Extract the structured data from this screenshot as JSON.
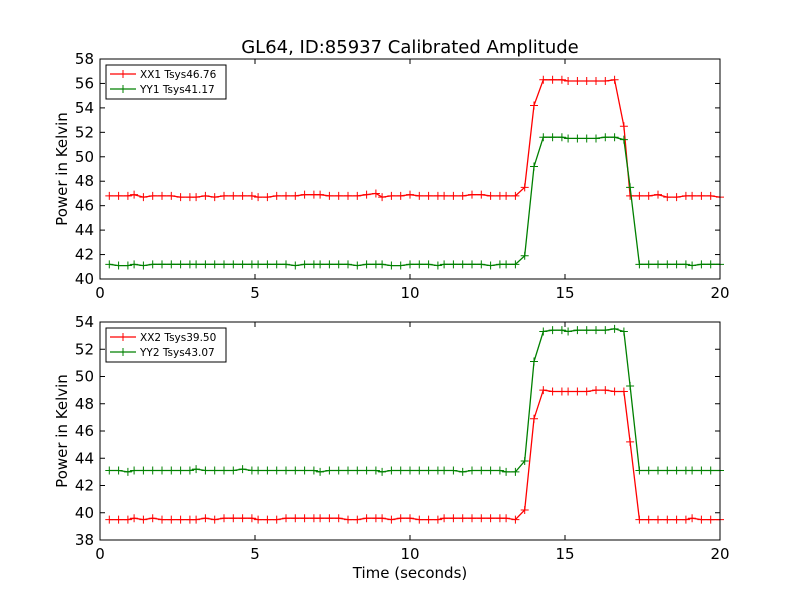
{
  "chart_data": [
    {
      "type": "line",
      "title": "GL64, ID:85937 Calibrated Amplitude",
      "xlabel": "",
      "ylabel": "Power in Kelvin",
      "xlim": [
        0,
        20
      ],
      "ylim": [
        40,
        58
      ],
      "xticks": [
        "0",
        "5",
        "10",
        "15",
        "20"
      ],
      "yticks": [
        "40",
        "42",
        "44",
        "46",
        "48",
        "50",
        "52",
        "54",
        "56",
        "58"
      ],
      "legend": "top-left",
      "grid": false,
      "series": [
        {
          "name": "XX1 Tsys46.76",
          "color": "#ff0000",
          "x": [
            0.3,
            0.6,
            0.9,
            1.1,
            1.4,
            1.7,
            2.0,
            2.3,
            2.6,
            2.9,
            3.1,
            3.4,
            3.7,
            4.0,
            4.3,
            4.6,
            4.9,
            5.1,
            5.4,
            5.7,
            6.0,
            6.3,
            6.6,
            6.9,
            7.1,
            7.4,
            7.7,
            8.0,
            8.3,
            8.6,
            8.9,
            9.1,
            9.4,
            9.7,
            10.0,
            10.3,
            10.6,
            10.9,
            11.1,
            11.4,
            11.7,
            12.0,
            12.3,
            12.6,
            12.9,
            13.1,
            13.4,
            13.7,
            14.0,
            14.3,
            14.6,
            14.9,
            15.1,
            15.4,
            15.7,
            16.0,
            16.3,
            16.6,
            16.9,
            17.1,
            17.4,
            17.7,
            18.0,
            18.3,
            18.6,
            18.9,
            19.1,
            19.4,
            19.7,
            20.0
          ],
          "y": [
            46.8,
            46.8,
            46.8,
            46.9,
            46.7,
            46.8,
            46.8,
            46.8,
            46.7,
            46.7,
            46.7,
            46.8,
            46.7,
            46.8,
            46.8,
            46.8,
            46.8,
            46.7,
            46.7,
            46.8,
            46.8,
            46.8,
            46.9,
            46.9,
            46.9,
            46.8,
            46.8,
            46.8,
            46.8,
            46.9,
            47.0,
            46.7,
            46.8,
            46.8,
            46.9,
            46.8,
            46.8,
            46.8,
            46.8,
            46.8,
            46.8,
            46.9,
            46.9,
            46.8,
            46.8,
            46.8,
            46.8,
            47.5,
            54.2,
            56.3,
            56.3,
            56.3,
            56.2,
            56.2,
            56.2,
            56.2,
            56.2,
            56.3,
            52.5,
            46.8,
            46.8,
            46.8,
            46.9,
            46.7,
            46.7,
            46.8,
            46.8,
            46.8,
            46.8,
            46.7
          ]
        },
        {
          "name": "YY1 Tsys41.17",
          "color": "#008000",
          "x": [
            0.3,
            0.6,
            0.9,
            1.1,
            1.4,
            1.7,
            2.0,
            2.3,
            2.6,
            2.9,
            3.1,
            3.4,
            3.7,
            4.0,
            4.3,
            4.6,
            4.9,
            5.1,
            5.4,
            5.7,
            6.0,
            6.3,
            6.6,
            6.9,
            7.1,
            7.4,
            7.7,
            8.0,
            8.3,
            8.6,
            8.9,
            9.1,
            9.4,
            9.7,
            10.0,
            10.3,
            10.6,
            10.9,
            11.1,
            11.4,
            11.7,
            12.0,
            12.3,
            12.6,
            12.9,
            13.1,
            13.4,
            13.7,
            14.0,
            14.3,
            14.6,
            14.9,
            15.1,
            15.4,
            15.7,
            16.0,
            16.3,
            16.6,
            16.9,
            17.1,
            17.4,
            17.7,
            18.0,
            18.3,
            18.6,
            18.9,
            19.1,
            19.4,
            19.7,
            20.0
          ],
          "y": [
            41.2,
            41.1,
            41.1,
            41.2,
            41.1,
            41.2,
            41.2,
            41.2,
            41.2,
            41.2,
            41.2,
            41.2,
            41.2,
            41.2,
            41.2,
            41.2,
            41.2,
            41.2,
            41.2,
            41.2,
            41.2,
            41.1,
            41.2,
            41.2,
            41.2,
            41.2,
            41.2,
            41.2,
            41.1,
            41.2,
            41.2,
            41.2,
            41.1,
            41.1,
            41.2,
            41.2,
            41.2,
            41.1,
            41.2,
            41.2,
            41.2,
            41.2,
            41.2,
            41.1,
            41.2,
            41.2,
            41.2,
            41.9,
            49.2,
            51.6,
            51.6,
            51.6,
            51.5,
            51.5,
            51.5,
            51.5,
            51.6,
            51.6,
            51.4,
            47.5,
            41.2,
            41.2,
            41.2,
            41.2,
            41.2,
            41.2,
            41.1,
            41.2,
            41.2,
            41.2
          ]
        }
      ]
    },
    {
      "type": "line",
      "title": "",
      "xlabel": "Time (seconds)",
      "ylabel": "Power in Kelvin",
      "xlim": [
        0,
        20
      ],
      "ylim": [
        38,
        54
      ],
      "xticks": [
        "0",
        "5",
        "10",
        "15",
        "20"
      ],
      "yticks": [
        "38",
        "40",
        "42",
        "44",
        "46",
        "48",
        "50",
        "52",
        "54"
      ],
      "legend": "top-left",
      "grid": false,
      "series": [
        {
          "name": "XX2 Tsys39.50",
          "color": "#ff0000",
          "x": [
            0.3,
            0.6,
            0.9,
            1.1,
            1.4,
            1.7,
            2.0,
            2.3,
            2.6,
            2.9,
            3.1,
            3.4,
            3.7,
            4.0,
            4.3,
            4.6,
            4.9,
            5.1,
            5.4,
            5.7,
            6.0,
            6.3,
            6.6,
            6.9,
            7.1,
            7.4,
            7.7,
            8.0,
            8.3,
            8.6,
            8.9,
            9.1,
            9.4,
            9.7,
            10.0,
            10.3,
            10.6,
            10.9,
            11.1,
            11.4,
            11.7,
            12.0,
            12.3,
            12.6,
            12.9,
            13.1,
            13.4,
            13.7,
            14.0,
            14.3,
            14.6,
            14.9,
            15.1,
            15.4,
            15.7,
            16.0,
            16.3,
            16.6,
            16.9,
            17.1,
            17.4,
            17.7,
            18.0,
            18.3,
            18.6,
            18.9,
            19.1,
            19.4,
            19.7,
            20.0
          ],
          "y": [
            39.5,
            39.5,
            39.5,
            39.6,
            39.5,
            39.6,
            39.5,
            39.5,
            39.5,
            39.5,
            39.5,
            39.6,
            39.5,
            39.6,
            39.6,
            39.6,
            39.6,
            39.5,
            39.5,
            39.5,
            39.6,
            39.6,
            39.6,
            39.6,
            39.6,
            39.6,
            39.6,
            39.5,
            39.5,
            39.6,
            39.6,
            39.6,
            39.5,
            39.6,
            39.6,
            39.5,
            39.5,
            39.5,
            39.6,
            39.6,
            39.6,
            39.6,
            39.6,
            39.6,
            39.6,
            39.6,
            39.5,
            40.2,
            46.9,
            49.0,
            48.9,
            48.9,
            48.9,
            48.9,
            48.9,
            49.0,
            49.0,
            48.9,
            48.9,
            45.2,
            39.5,
            39.5,
            39.5,
            39.5,
            39.5,
            39.5,
            39.6,
            39.5,
            39.5,
            39.5
          ]
        },
        {
          "name": "YY2 Tsys43.07",
          "color": "#008000",
          "x": [
            0.3,
            0.6,
            0.9,
            1.1,
            1.4,
            1.7,
            2.0,
            2.3,
            2.6,
            2.9,
            3.1,
            3.4,
            3.7,
            4.0,
            4.3,
            4.6,
            4.9,
            5.1,
            5.4,
            5.7,
            6.0,
            6.3,
            6.6,
            6.9,
            7.1,
            7.4,
            7.7,
            8.0,
            8.3,
            8.6,
            8.9,
            9.1,
            9.4,
            9.7,
            10.0,
            10.3,
            10.6,
            10.9,
            11.1,
            11.4,
            11.7,
            12.0,
            12.3,
            12.6,
            12.9,
            13.1,
            13.4,
            13.7,
            14.0,
            14.3,
            14.6,
            14.9,
            15.1,
            15.4,
            15.7,
            16.0,
            16.3,
            16.6,
            16.9,
            17.1,
            17.4,
            17.7,
            18.0,
            18.3,
            18.6,
            18.9,
            19.1,
            19.4,
            19.7,
            20.0
          ],
          "y": [
            43.1,
            43.1,
            43.0,
            43.1,
            43.1,
            43.1,
            43.1,
            43.1,
            43.1,
            43.1,
            43.2,
            43.1,
            43.1,
            43.1,
            43.1,
            43.2,
            43.1,
            43.1,
            43.1,
            43.1,
            43.1,
            43.1,
            43.1,
            43.1,
            43.0,
            43.1,
            43.1,
            43.1,
            43.1,
            43.1,
            43.1,
            43.0,
            43.1,
            43.1,
            43.1,
            43.1,
            43.1,
            43.1,
            43.1,
            43.1,
            43.0,
            43.1,
            43.1,
            43.1,
            43.1,
            43.0,
            43.0,
            43.8,
            51.1,
            53.3,
            53.4,
            53.4,
            53.3,
            53.4,
            53.4,
            53.4,
            53.4,
            53.5,
            53.3,
            49.3,
            43.1,
            43.1,
            43.1,
            43.1,
            43.1,
            43.1,
            43.1,
            43.1,
            43.1,
            43.1
          ]
        }
      ]
    }
  ]
}
